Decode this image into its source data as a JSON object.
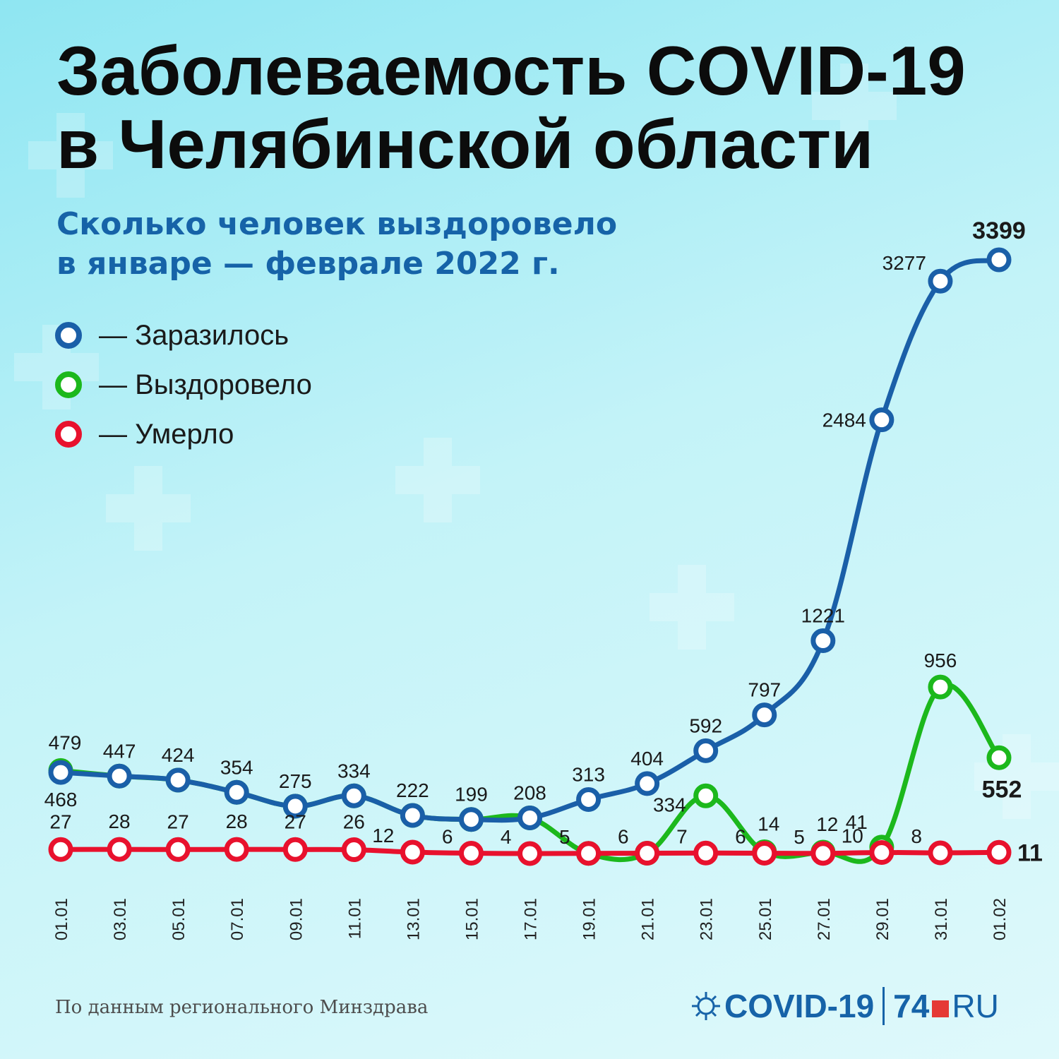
{
  "title": {
    "line1": "Заболеваемость COVID-19",
    "line2": "в Челябинской области"
  },
  "subtitle": {
    "line1": "Сколько человек выздоровело",
    "line2": "в январе — феврале 2022 г."
  },
  "legend": [
    {
      "label": "— Заразилось",
      "color": "#1a5fa8"
    },
    {
      "label": "— Выздоровело",
      "color": "#1cb81c"
    },
    {
      "label": "— Умерло",
      "color": "#e8112d"
    }
  ],
  "chart_data": {
    "type": "line",
    "x": [
      "01.01",
      "03.01",
      "05.01",
      "07.01",
      "09.01",
      "11.01",
      "13.01",
      "15.01",
      "17.01",
      "19.01",
      "21.01",
      "23.01",
      "25.01",
      "27.01",
      "29.01",
      "31.01",
      "01.02"
    ],
    "series": [
      {
        "name": "Заразилось",
        "color": "#1a5fa8",
        "values": [
          468,
          447,
          424,
          354,
          275,
          334,
          222,
          199,
          208,
          313,
          404,
          592,
          797,
          1221,
          2484,
          3277,
          3399
        ],
        "labels": [
          "468",
          "447",
          "424",
          "354",
          "275",
          "334",
          "222",
          "199",
          "208",
          "313",
          "404",
          "592",
          "797",
          "1221",
          "2484",
          "3277",
          "3399"
        ]
      },
      {
        "name": "Выздоровело",
        "color": "#1cb81c",
        "values": [
          479,
          447,
          424,
          354,
          275,
          334,
          222,
          199,
          208,
          5,
          6,
          334,
          14,
          12,
          41,
          956,
          552
        ],
        "labels": [
          "479",
          "",
          "",
          "",
          "",
          "",
          "",
          "",
          "",
          "",
          "",
          "334",
          "14",
          "12",
          "41",
          "956",
          "552"
        ]
      },
      {
        "name": "Умерло",
        "color": "#e8112d",
        "values": [
          27,
          28,
          27,
          28,
          27,
          26,
          12,
          6,
          4,
          5,
          6,
          7,
          6,
          5,
          10,
          8,
          11
        ],
        "labels": [
          "27",
          "28",
          "27",
          "28",
          "27",
          "26",
          "12",
          "6",
          "4",
          "5",
          "6",
          "7",
          "6",
          "5",
          "10",
          "8",
          "11"
        ]
      }
    ]
  },
  "source": "По данным регионального Минздрава",
  "logo": {
    "covid": "COVID-19",
    "num": "74",
    "ru": "RU"
  }
}
